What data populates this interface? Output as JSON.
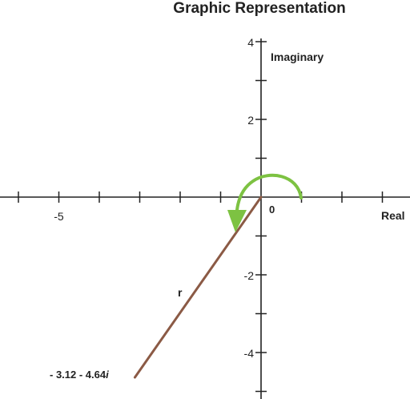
{
  "title": "Graphic Representation",
  "axes": {
    "real_label": "Real",
    "imaginary_label": "Imaginary",
    "origin_label": "0",
    "x_range": [
      -6.4,
      3.0
    ],
    "y_range": [
      -5.0,
      4.0
    ],
    "x_ticks": [
      -6,
      -5,
      -4,
      -3,
      -2,
      -1,
      1,
      2,
      3
    ],
    "y_ticks": [
      -5,
      -4,
      -3,
      -2,
      -1,
      1,
      2,
      3,
      4
    ],
    "x_tick_labels": [
      {
        "value": -5,
        "text": "-5"
      }
    ],
    "y_tick_labels": [
      {
        "value": 4,
        "text": "4"
      },
      {
        "value": 2,
        "text": "2"
      },
      {
        "value": -2,
        "text": "-2"
      },
      {
        "value": -4,
        "text": "-4"
      }
    ]
  },
  "point": {
    "real": -3.12,
    "imaginary": -4.64,
    "label_main": "- 3.12 - 4.64",
    "label_i": "i"
  },
  "radius_label": "r",
  "colors": {
    "axis": "#222222",
    "vector": "#8b5a45",
    "arc": "#7dc242"
  }
}
